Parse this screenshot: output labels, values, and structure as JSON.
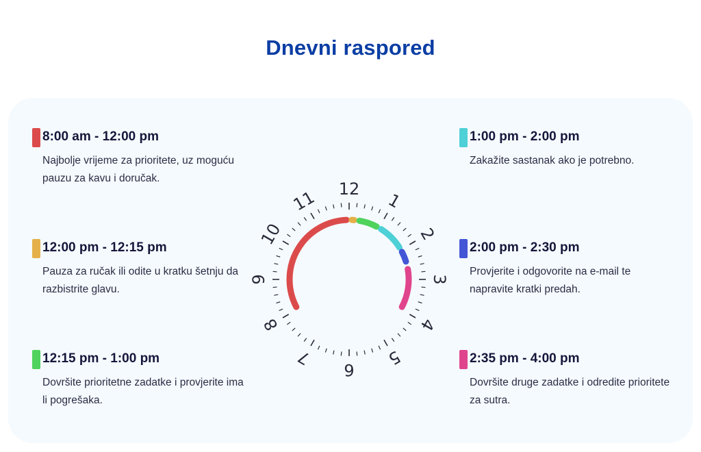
{
  "title": "Dnevni raspored",
  "colors": {
    "title": "#0b3ea4",
    "red": "#dc4b4b",
    "orange": "#e5b04a",
    "green": "#4fd35c",
    "cyan": "#4dd0d6",
    "blue": "#4356d6",
    "pink": "#e0448d"
  },
  "schedule": [
    {
      "time": "8:00 am - 12:00 pm",
      "description": "Najbolje vrijeme za prioritete, uz moguću pauzu za kavu i doručak.",
      "color": "#dc4b4b",
      "start_hour": 8,
      "end_hour": 12
    },
    {
      "time": "12:00 pm - 12:15 pm",
      "description": "Pauza za ručak ili odite u kratku šetnju da razbistrite glavu.",
      "color": "#e5b04a",
      "start_hour": 12,
      "end_hour": 12.25
    },
    {
      "time": "12:15 pm - 1:00 pm",
      "description": "Dovršite prioritetne zadatke i provjerite ima li pogrešaka.",
      "color": "#4fd35c",
      "start_hour": 12.25,
      "end_hour": 13
    },
    {
      "time": "1:00 pm - 2:00 pm",
      "description": "Zakažite sastanak ako je potrebno.",
      "color": "#4dd0d6",
      "start_hour": 13,
      "end_hour": 14
    },
    {
      "time": "2:00 pm - 2:30 pm",
      "description": "Provjerite i odgovorite na e-mail te napravite kratki predah.",
      "color": "#4356d6",
      "start_hour": 14,
      "end_hour": 14.5
    },
    {
      "time": "2:35 pm - 4:00 pm",
      "description": "Dovršite druge zadatke i odredite prioritete za sutra.",
      "color": "#e0448d",
      "start_hour": 14.583,
      "end_hour": 16
    }
  ],
  "clock_numbers": [
    "12",
    "1",
    "2",
    "3",
    "4",
    "5",
    "6",
    "7",
    "8",
    "9",
    "10",
    "11"
  ]
}
